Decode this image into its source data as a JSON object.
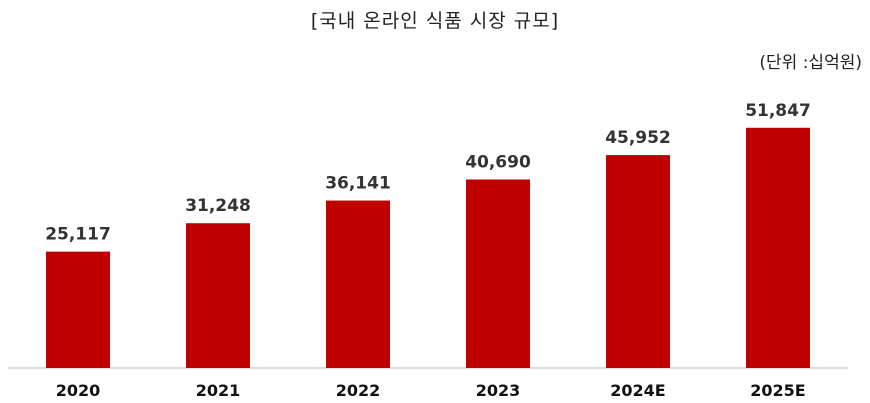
{
  "chart_data": {
    "type": "bar",
    "title": "[국내 온라인 식품 시장 규모]",
    "unit": "(단위 :십억원)",
    "categories": [
      "2020",
      "2021",
      "2022",
      "2023",
      "2024E",
      "2025E"
    ],
    "values": [
      25117,
      31248,
      36141,
      40690,
      45952,
      51847
    ],
    "value_labels": [
      "25,117",
      "31,248",
      "36,141",
      "40,690",
      "45,952",
      "51,847"
    ],
    "ylim": [
      0,
      60000
    ],
    "grid": false,
    "legend": "none",
    "colors": {
      "bar": "#C00000",
      "axis": "#D0D0D0"
    }
  }
}
